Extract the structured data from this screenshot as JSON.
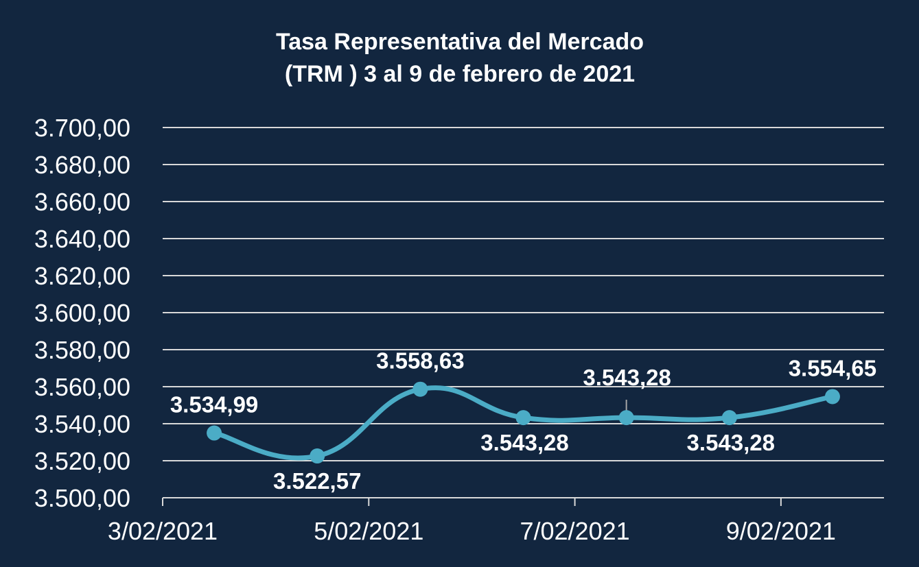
{
  "chart_data": {
    "type": "line",
    "title": [
      "Tasa Representativa del Mercado",
      "(TRM )  3 al 9 de febrero de 2021"
    ],
    "xlabel": "",
    "ylabel": "",
    "ylim": [
      3500,
      3700
    ],
    "y_tick_values": [
      3500,
      3520,
      3540,
      3560,
      3580,
      3600,
      3620,
      3640,
      3660,
      3680,
      3700
    ],
    "y_tick_labels": [
      "3.500,00",
      "3.520,00",
      "3.540,00",
      "3.560,00",
      "3.580,00",
      "3.600,00",
      "3.620,00",
      "3.640,00",
      "3.660,00",
      "3.680,00",
      "3.700,00"
    ],
    "x_tick_labels": [
      "3/02/2021",
      "5/02/2021",
      "7/02/2021",
      "9/02/2021"
    ],
    "grid": true,
    "legend": "none",
    "line_color": "#4bacc6",
    "series": [
      {
        "x": [
          "3/02/2021",
          "4/02/2021",
          "5/02/2021",
          "6/02/2021",
          "7/02/2021",
          "8/02/2021",
          "9/02/2021"
        ],
        "values": [
          3534.99,
          3522.57,
          3558.63,
          3543.28,
          3543.28,
          3543.28,
          3554.65
        ],
        "labels": [
          "3.534,99",
          "3.522,57",
          "3.558,63",
          "3.543,28",
          "3.543,28",
          "3.543,28",
          "3.554,65"
        ],
        "label_positions": [
          "above",
          "below",
          "above",
          "below",
          "above",
          "below",
          "above"
        ]
      }
    ]
  }
}
